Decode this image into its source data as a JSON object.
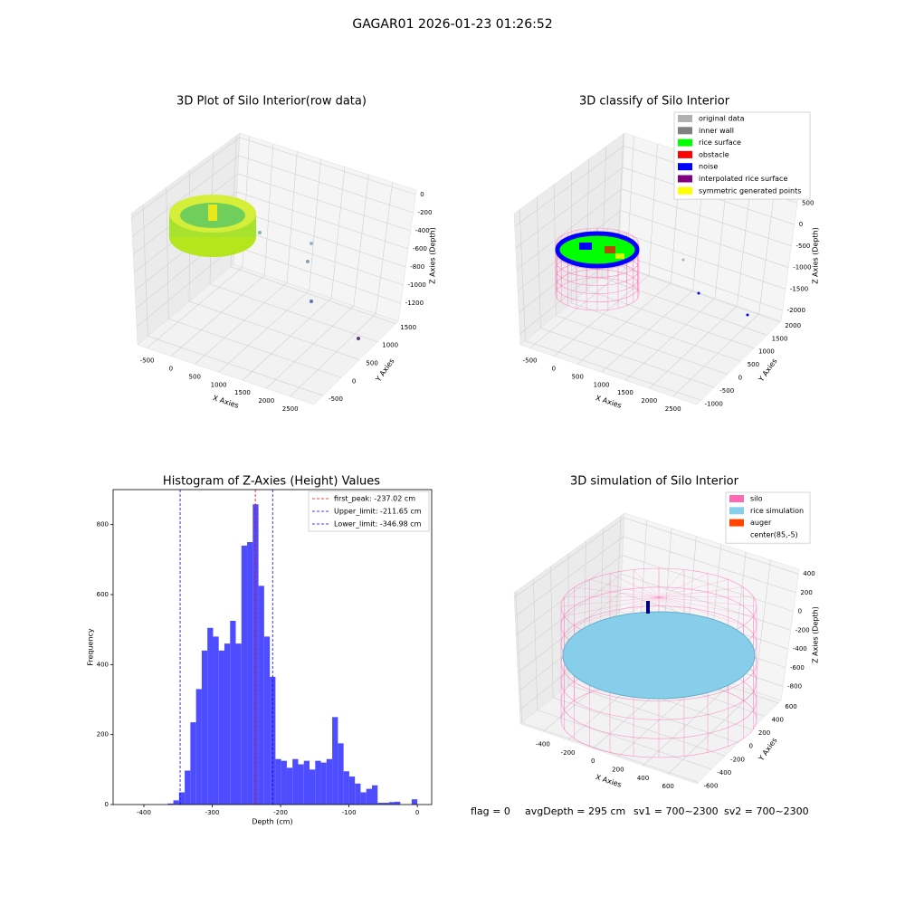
{
  "title": "GAGAR01 2026-01-23 01:26:52",
  "annotations": [
    "flag = 0",
    "avgDepth = 295 cm",
    "sv1 = 700~2300",
    "sv2 = 700~2300"
  ],
  "chart_data": [
    {
      "type": "scatter3d",
      "title": "3D Plot of Silo Interior(row data)",
      "xlabel": "X Axies",
      "ylabel": "Y Axies",
      "zlabel": "Z Axies (Depth)",
      "xlim": [
        -700,
        3000
      ],
      "xticks": [
        -500,
        0,
        500,
        1000,
        1500,
        2000,
        2500
      ],
      "ylim": [
        -750,
        1570
      ],
      "yticks": [
        -500,
        0,
        500,
        1000,
        1500
      ],
      "zlim": [
        -1400,
        50
      ],
      "zticks": [
        -1200,
        -1000,
        -800,
        -600,
        -400,
        -200,
        0
      ],
      "grid": true
    },
    {
      "type": "scatter3d",
      "title": "3D classify of Silo Interior",
      "xlabel": "X Axies",
      "ylabel": "Y Axies",
      "zlabel": "Z Axies (Depth)",
      "xlim": [
        -700,
        3000
      ],
      "xticks": [
        -500,
        0,
        500,
        1000,
        1500,
        2000,
        2500
      ],
      "ylim": [
        -1160,
        2030
      ],
      "yticks": [
        -1000,
        -500,
        0,
        500,
        1000,
        1500,
        2000
      ],
      "zlim": [
        -2250,
        800
      ],
      "zticks": [
        -2000,
        -1500,
        -1000,
        -500,
        0,
        500
      ],
      "grid": true,
      "legend_loc": "upper right",
      "legend": [
        {
          "name": "original data",
          "color": "#b0b0b0"
        },
        {
          "name": "inner wall",
          "color": "#808080"
        },
        {
          "name": "rice surface",
          "color": "#00ff00"
        },
        {
          "name": "obstacle",
          "color": "#ff0000"
        },
        {
          "name": "noise",
          "color": "#0000ff"
        },
        {
          "name": "interpolated rice surface",
          "color": "#800080"
        },
        {
          "name": "symmetric generated points",
          "color": "#ffff00"
        }
      ]
    },
    {
      "type": "histogram",
      "title": "Histogram of Z-Axies (Height) Values",
      "xlabel": "Depth (cm)",
      "ylabel": "Frequency",
      "color": "#4d4dff",
      "bins": [
        -365.2,
        -356.9,
        -348.6,
        -340.3,
        -332.0,
        -323.7,
        -315.4,
        -307.1,
        -298.8,
        -290.5,
        -282.2,
        -273.9,
        -265.6,
        -257.3,
        -249.0,
        -240.7,
        -232.4,
        -224.1,
        -215.8,
        -207.5,
        -199.2,
        -190.9,
        -182.6,
        -174.3,
        -166.0,
        -157.7,
        -149.4,
        -141.1,
        -132.8,
        -124.5,
        -116.2,
        -107.9,
        -99.6,
        -91.3,
        -83.0,
        -74.7,
        -66.4,
        -58.1,
        -49.8,
        -41.5,
        -33.2,
        -24.9,
        -16.6,
        -8.3,
        0
      ],
      "values": [
        3,
        12,
        35,
        97,
        235,
        330,
        440,
        505,
        480,
        440,
        460,
        525,
        460,
        740,
        750,
        858,
        625,
        480,
        365,
        130,
        125,
        105,
        130,
        115,
        125,
        100,
        125,
        120,
        130,
        250,
        175,
        95,
        80,
        60,
        35,
        45,
        55,
        5,
        5,
        7,
        8,
        0,
        0,
        15
      ],
      "xlim": [
        -445,
        21
      ],
      "xticks": [
        -400,
        -300,
        -200,
        -100,
        0
      ],
      "ylim": [
        0,
        900
      ],
      "yticks": [
        0,
        200,
        400,
        600,
        800
      ],
      "legend_loc": "upper right",
      "vlines": [
        {
          "name": "first_peak: -237.02 cm",
          "value": -237.02,
          "color": "#ff0000"
        },
        {
          "name": "Upper_limit: -211.65 cm",
          "value": -211.65,
          "color": "#0000ff"
        },
        {
          "name": "Lower_limit: -346.98 cm",
          "value": -346.98,
          "color": "#0000ff"
        }
      ]
    },
    {
      "type": "scatter3d",
      "title": "3D simulation of Silo Interior",
      "xlabel": "X Axies",
      "ylabel": "Y Axies",
      "zlabel": "Z Axies (Depth)",
      "xlim": [
        -580,
        830
      ],
      "xticks": [
        -400,
        -200,
        0,
        200,
        400,
        600
      ],
      "ylim": [
        -620,
        640
      ],
      "yticks": [
        -600,
        -400,
        -200,
        0,
        200,
        400,
        600
      ],
      "zlim": [
        -950,
        450
      ],
      "zticks": [
        -800,
        -600,
        -400,
        -200,
        0,
        200,
        400
      ],
      "grid": true,
      "legend_loc": "upper right",
      "legend": [
        {
          "name": "silo",
          "color": "#ff69b4"
        },
        {
          "name": "rice simulation",
          "color": "#87ceeb"
        },
        {
          "name": "auger",
          "color": "#ff4500"
        },
        {
          "name": "center(85,-5)"
        }
      ]
    }
  ]
}
